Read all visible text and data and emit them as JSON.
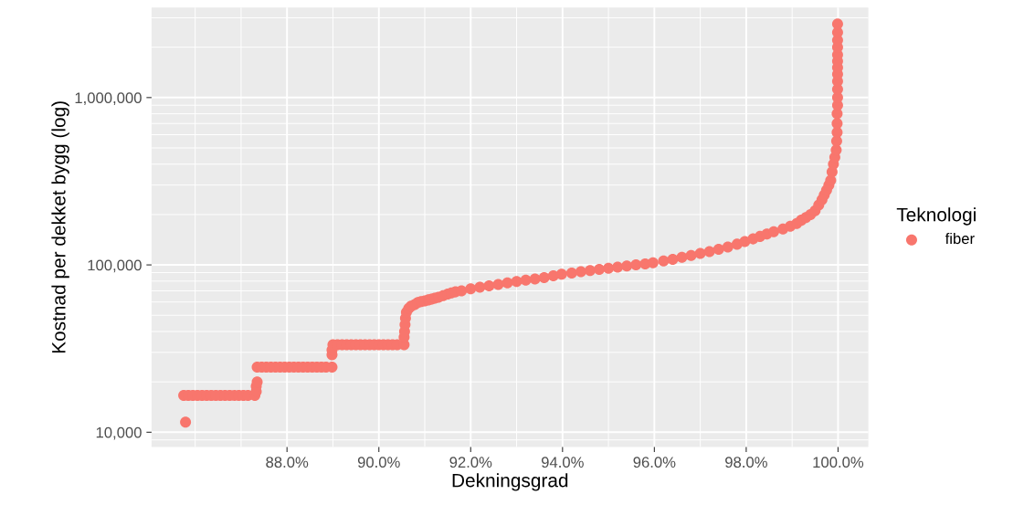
{
  "chart_data": {
    "type": "scatter",
    "xlabel": "Dekningsgrad",
    "ylabel": "Kostnad per dekket bygg (log)",
    "legend_title": "Teknologi",
    "legend": "right",
    "grid": true,
    "marker": "circle",
    "log": "y",
    "xlim": [
      85.05,
      100.66
    ],
    "ylim": [
      8170,
      3450000
    ],
    "xticks": [
      {
        "value": 88,
        "label": "88.0%"
      },
      {
        "value": 90,
        "label": "90.0%"
      },
      {
        "value": 92,
        "label": "92.0%"
      },
      {
        "value": 94,
        "label": "94.0%"
      },
      {
        "value": 96,
        "label": "96.0%"
      },
      {
        "value": 98,
        "label": "98.0%"
      },
      {
        "value": 100,
        "label": "100.0%"
      }
    ],
    "yticks": [
      {
        "value": 10000,
        "label": "10,000"
      },
      {
        "value": 100000,
        "label": "100,000"
      },
      {
        "value": 1000000,
        "label": "1,000,000"
      }
    ],
    "series": [
      {
        "name": "fiber",
        "color": "#f8766d",
        "x": [
          85.79,
          85.75,
          85.85,
          85.95,
          86.05,
          86.15,
          86.25,
          86.35,
          86.45,
          86.55,
          86.65,
          86.75,
          86.85,
          86.95,
          87.05,
          87.15,
          87.3,
          87.33,
          87.33,
          87.35,
          87.35,
          87.45,
          87.55,
          87.65,
          87.75,
          87.85,
          87.95,
          88.05,
          88.15,
          88.25,
          88.35,
          88.45,
          88.55,
          88.65,
          88.75,
          88.85,
          88.98,
          88.98,
          88.98,
          89.0,
          89.1,
          89.2,
          89.3,
          89.4,
          89.5,
          89.6,
          89.7,
          89.8,
          89.9,
          90.0,
          90.1,
          90.2,
          90.3,
          90.4,
          90.55,
          90.55,
          90.56,
          90.57,
          90.58,
          90.6,
          90.65,
          90.7,
          90.78,
          90.85,
          90.92,
          91.0,
          91.08,
          91.15,
          91.22,
          91.3,
          91.4,
          91.5,
          91.58,
          91.67,
          91.8,
          92.0,
          92.2,
          92.4,
          92.6,
          92.8,
          93.0,
          93.2,
          93.4,
          93.6,
          93.8,
          93.98,
          94.2,
          94.4,
          94.6,
          94.8,
          95.0,
          95.2,
          95.4,
          95.6,
          95.8,
          95.97,
          96.2,
          96.4,
          96.6,
          96.8,
          97.0,
          97.2,
          97.4,
          97.6,
          97.8,
          97.97,
          98.15,
          98.3,
          98.45,
          98.6,
          98.8,
          98.96,
          99.1,
          99.2,
          99.3,
          99.4,
          99.5,
          99.58,
          99.65,
          99.7,
          99.75,
          99.8,
          99.84,
          99.87,
          99.9,
          99.93,
          99.96,
          99.97,
          99.98,
          99.98,
          99.98,
          99.99,
          99.99,
          99.99,
          99.99,
          99.99,
          99.99,
          99.99,
          99.99,
          99.99,
          99.99,
          99.99,
          99.99
        ],
        "values": [
          11500,
          16600,
          16600,
          16600,
          16600,
          16600,
          16600,
          16600,
          16600,
          16600,
          16600,
          16600,
          16600,
          16600,
          16600,
          16600,
          16600,
          17500,
          18800,
          20000,
          24500,
          24500,
          24500,
          24500,
          24500,
          24500,
          24500,
          24500,
          24500,
          24500,
          24500,
          24500,
          24500,
          24500,
          24500,
          24500,
          24500,
          29000,
          31000,
          33300,
          33300,
          33300,
          33300,
          33300,
          33300,
          33300,
          33300,
          33300,
          33300,
          33300,
          33300,
          33300,
          33300,
          33300,
          33300,
          37000,
          40000,
          44000,
          48000,
          52000,
          55000,
          56600,
          58000,
          59600,
          60300,
          61000,
          61800,
          62500,
          63200,
          64000,
          65500,
          67000,
          68000,
          69000,
          70000,
          72000,
          73500,
          75000,
          76500,
          78000,
          79500,
          81000,
          82500,
          84000,
          86000,
          88100,
          89500,
          91000,
          92500,
          94000,
          95500,
          97000,
          98500,
          100000,
          101500,
          103000,
          105500,
          108000,
          111000,
          114000,
          117000,
          120000,
          124000,
          128000,
          133000,
          138000,
          143000,
          148000,
          153000,
          158000,
          164000,
          170000,
          177000,
          185000,
          192000,
          200000,
          211000,
          228000,
          245000,
          262000,
          280000,
          300000,
          320000,
          360000,
          400000,
          440000,
          486000,
          550000,
          620000,
          700000,
          800000,
          900000,
          1000000,
          1120000,
          1250000,
          1380000,
          1510000,
          1650000,
          1800000,
          2000000,
          2200000,
          2450000,
          2750000
        ]
      }
    ]
  }
}
